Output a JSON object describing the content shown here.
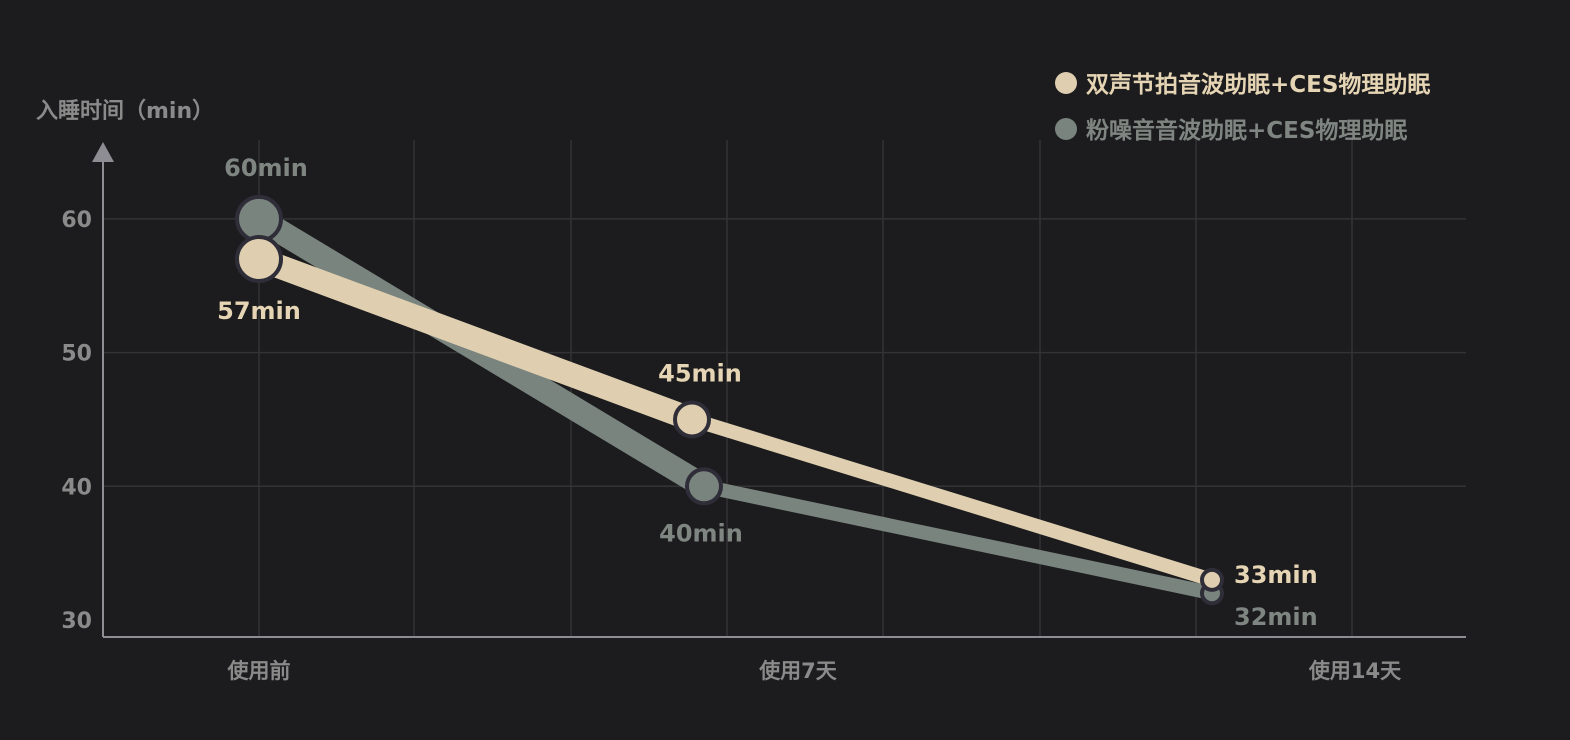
{
  "chart_data": {
    "type": "line",
    "ylabel": "入睡时间（min）",
    "categories": [
      "使用前",
      "使用7天",
      "使用14天"
    ],
    "yticks": [
      30,
      40,
      50,
      60
    ],
    "ylim": [
      30,
      65
    ],
    "grid": true,
    "legend_position": "top-right",
    "series": [
      {
        "name": "双声节拍音波助眠+CES物理助眠",
        "color": "#dfcfb0",
        "values": [
          57,
          45,
          33
        ],
        "labels": [
          "57min",
          "45min",
          "33min"
        ]
      },
      {
        "name": "粉噪音音波助眠+CES物理助眠",
        "color": "#7a847e",
        "values": [
          60,
          40,
          32
        ],
        "labels": [
          "60min",
          "40min",
          "32min"
        ]
      }
    ]
  }
}
